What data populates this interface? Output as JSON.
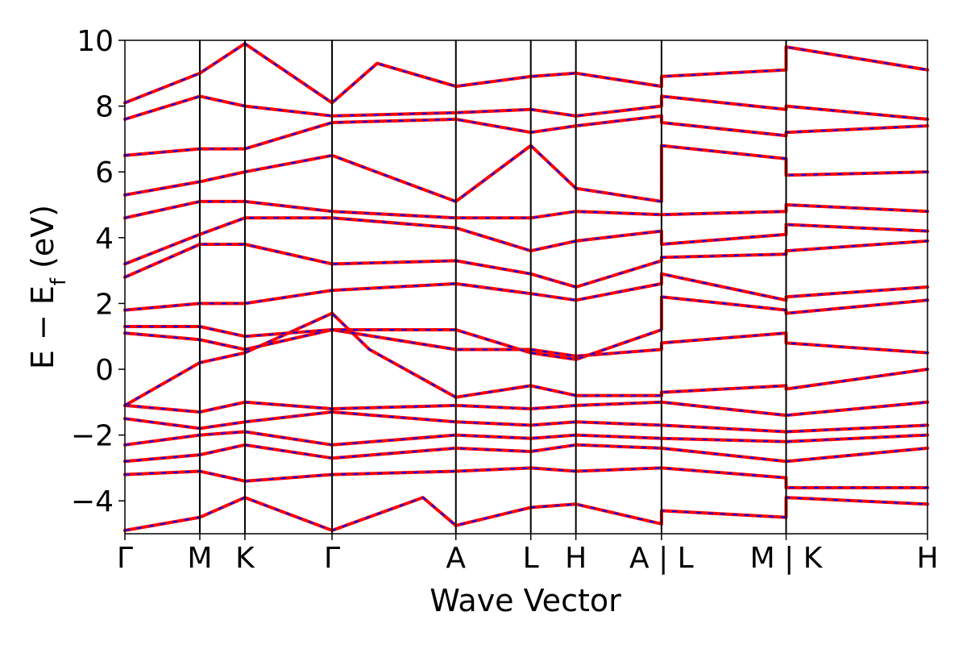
{
  "chart_data": {
    "type": "line",
    "xlabel": "Wave Vector",
    "ylabel": "E − E",
    "ylabel_subscript": "f",
    "ylabel_unit": "(eV)",
    "ylim": [
      -5,
      10
    ],
    "yticks": [
      -4,
      -2,
      0,
      2,
      4,
      6,
      8,
      10
    ],
    "ytick_labels": [
      "−4",
      "−2",
      "0",
      "2",
      "4",
      "6",
      "8",
      "10"
    ],
    "xlim": [
      0,
      10.5
    ],
    "kpoints": [
      {
        "label": "Γ",
        "x": 0.0
      },
      {
        "label": "M",
        "x": 0.98
      },
      {
        "label": "K",
        "x": 1.57
      },
      {
        "label": "Γ",
        "x": 2.71
      },
      {
        "label": "A",
        "x": 4.33
      },
      {
        "label": "L",
        "x": 5.31
      },
      {
        "label": "H",
        "x": 5.9
      },
      {
        "label": "A | L",
        "x": 7.02
      },
      {
        "label": "M | K",
        "x": 8.65
      },
      {
        "label": "H",
        "x": 10.5
      }
    ],
    "colors": {
      "band_primary": "#ff0000",
      "band_secondary": "#0000ff",
      "divider": "#000000"
    },
    "series": [
      {
        "values": [
          [
            0.0,
            -4.9
          ],
          [
            0.98,
            -4.5
          ],
          [
            1.57,
            -3.9
          ],
          [
            2.71,
            -4.9
          ],
          [
            3.9,
            -3.9
          ],
          [
            4.33,
            -4.75
          ],
          [
            5.31,
            -4.2
          ],
          [
            5.9,
            -4.1
          ],
          [
            7.02,
            -4.7
          ],
          [
            7.02,
            -4.3
          ],
          [
            8.65,
            -4.5
          ],
          [
            8.65,
            -3.9
          ],
          [
            10.5,
            -4.1
          ]
        ]
      },
      {
        "values": [
          [
            0.0,
            -3.2
          ],
          [
            0.98,
            -3.1
          ],
          [
            1.57,
            -3.4
          ],
          [
            2.71,
            -3.2
          ],
          [
            4.33,
            -3.1
          ],
          [
            5.31,
            -3.0
          ],
          [
            5.9,
            -3.1
          ],
          [
            7.02,
            -3.0
          ],
          [
            8.65,
            -3.3
          ],
          [
            8.65,
            -3.6
          ],
          [
            10.5,
            -3.6
          ]
        ]
      },
      {
        "values": [
          [
            0.0,
            -2.8
          ],
          [
            0.98,
            -2.6
          ],
          [
            1.57,
            -2.3
          ],
          [
            2.71,
            -2.7
          ],
          [
            4.33,
            -2.4
          ],
          [
            5.31,
            -2.5
          ],
          [
            5.9,
            -2.3
          ],
          [
            7.02,
            -2.4
          ],
          [
            8.65,
            -2.8
          ],
          [
            10.5,
            -2.4
          ]
        ]
      },
      {
        "values": [
          [
            0.0,
            -2.3
          ],
          [
            0.98,
            -2.0
          ],
          [
            1.57,
            -1.9
          ],
          [
            2.71,
            -2.3
          ],
          [
            4.33,
            -2.0
          ],
          [
            5.31,
            -2.1
          ],
          [
            5.9,
            -2.0
          ],
          [
            7.02,
            -2.1
          ],
          [
            8.65,
            -2.2
          ],
          [
            10.5,
            -2.0
          ]
        ]
      },
      {
        "values": [
          [
            0.0,
            -1.5
          ],
          [
            0.98,
            -1.8
          ],
          [
            1.57,
            -1.6
          ],
          [
            2.71,
            -1.3
          ],
          [
            4.33,
            -1.6
          ],
          [
            5.31,
            -1.7
          ],
          [
            5.9,
            -1.6
          ],
          [
            7.02,
            -1.7
          ],
          [
            8.65,
            -1.9
          ],
          [
            10.5,
            -1.7
          ]
        ]
      },
      {
        "values": [
          [
            0.0,
            -1.1
          ],
          [
            0.98,
            -1.3
          ],
          [
            1.57,
            -1.0
          ],
          [
            2.71,
            -1.2
          ],
          [
            4.33,
            -1.1
          ],
          [
            5.31,
            -1.2
          ],
          [
            5.9,
            -1.1
          ],
          [
            7.02,
            -1.0
          ],
          [
            8.65,
            -1.4
          ],
          [
            10.5,
            -1.0
          ]
        ]
      },
      {
        "values": [
          [
            0.0,
            -1.1
          ],
          [
            0.98,
            0.2
          ],
          [
            1.57,
            0.5
          ],
          [
            2.71,
            1.7
          ],
          [
            3.2,
            0.6
          ],
          [
            4.33,
            -0.85
          ],
          [
            5.31,
            -0.5
          ],
          [
            5.9,
            -0.8
          ],
          [
            7.02,
            -0.8
          ],
          [
            7.02,
            -0.7
          ],
          [
            8.65,
            -0.5
          ],
          [
            8.65,
            -0.6
          ],
          [
            10.5,
            0.0
          ]
        ]
      },
      {
        "values": [
          [
            0.0,
            1.1
          ],
          [
            0.98,
            0.9
          ],
          [
            1.57,
            0.6
          ],
          [
            2.71,
            1.2
          ],
          [
            4.33,
            0.6
          ],
          [
            5.31,
            0.6
          ],
          [
            5.9,
            0.4
          ],
          [
            7.02,
            0.6
          ],
          [
            7.02,
            0.8
          ],
          [
            8.65,
            1.1
          ],
          [
            8.65,
            0.8
          ],
          [
            10.5,
            0.5
          ]
        ]
      },
      {
        "values": [
          [
            0.0,
            1.3
          ],
          [
            0.98,
            1.3
          ],
          [
            1.57,
            1.0
          ],
          [
            2.71,
            1.2
          ],
          [
            4.33,
            1.2
          ],
          [
            5.31,
            0.5
          ],
          [
            5.9,
            0.3
          ],
          [
            7.02,
            1.2
          ],
          [
            7.02,
            2.2
          ],
          [
            8.65,
            1.8
          ],
          [
            8.65,
            1.7
          ],
          [
            10.5,
            2.1
          ]
        ]
      },
      {
        "values": [
          [
            0.0,
            1.8
          ],
          [
            0.98,
            2.0
          ],
          [
            1.57,
            2.0
          ],
          [
            2.71,
            2.4
          ],
          [
            4.33,
            2.6
          ],
          [
            5.31,
            2.3
          ],
          [
            5.9,
            2.1
          ],
          [
            7.02,
            2.6
          ],
          [
            7.02,
            2.9
          ],
          [
            8.65,
            2.1
          ],
          [
            8.65,
            2.2
          ],
          [
            10.5,
            2.5
          ]
        ]
      },
      {
        "values": [
          [
            0.0,
            2.8
          ],
          [
            0.98,
            3.8
          ],
          [
            1.57,
            3.8
          ],
          [
            2.71,
            3.2
          ],
          [
            4.33,
            3.3
          ],
          [
            5.31,
            2.9
          ],
          [
            5.9,
            2.5
          ],
          [
            7.02,
            3.3
          ],
          [
            7.02,
            3.4
          ],
          [
            8.65,
            3.5
          ],
          [
            8.65,
            3.6
          ],
          [
            10.5,
            3.9
          ]
        ]
      },
      {
        "values": [
          [
            0.0,
            3.2
          ],
          [
            0.98,
            4.1
          ],
          [
            1.57,
            4.6
          ],
          [
            2.71,
            4.6
          ],
          [
            4.33,
            4.3
          ],
          [
            5.31,
            3.6
          ],
          [
            5.9,
            3.9
          ],
          [
            7.02,
            4.2
          ],
          [
            7.02,
            3.8
          ],
          [
            8.65,
            4.1
          ],
          [
            8.65,
            4.4
          ],
          [
            10.5,
            4.2
          ]
        ]
      },
      {
        "values": [
          [
            0.0,
            4.6
          ],
          [
            0.98,
            5.1
          ],
          [
            1.57,
            5.1
          ],
          [
            2.71,
            4.8
          ],
          [
            4.33,
            4.6
          ],
          [
            5.31,
            4.6
          ],
          [
            5.9,
            4.8
          ],
          [
            7.02,
            4.7
          ],
          [
            7.02,
            4.7
          ],
          [
            8.65,
            4.8
          ],
          [
            8.65,
            5.0
          ],
          [
            10.5,
            4.8
          ]
        ]
      },
      {
        "values": [
          [
            0.0,
            5.3
          ],
          [
            0.98,
            5.7
          ],
          [
            1.57,
            6.0
          ],
          [
            2.71,
            6.5
          ],
          [
            4.33,
            5.1
          ],
          [
            5.31,
            6.8
          ],
          [
            5.9,
            5.5
          ],
          [
            7.02,
            5.1
          ],
          [
            7.02,
            6.8
          ],
          [
            8.65,
            6.4
          ],
          [
            8.65,
            5.9
          ],
          [
            10.5,
            6.0
          ]
        ]
      },
      {
        "values": [
          [
            0.0,
            6.5
          ],
          [
            0.98,
            6.7
          ],
          [
            1.57,
            6.7
          ],
          [
            2.71,
            7.5
          ],
          [
            4.33,
            7.6
          ],
          [
            5.31,
            7.2
          ],
          [
            5.9,
            7.4
          ],
          [
            7.02,
            7.7
          ],
          [
            7.02,
            7.5
          ],
          [
            8.65,
            7.1
          ],
          [
            8.65,
            7.2
          ],
          [
            10.5,
            7.4
          ]
        ]
      },
      {
        "values": [
          [
            0.0,
            7.6
          ],
          [
            0.98,
            8.3
          ],
          [
            1.57,
            8.0
          ],
          [
            2.71,
            7.7
          ],
          [
            4.33,
            7.8
          ],
          [
            5.31,
            7.9
          ],
          [
            5.9,
            7.7
          ],
          [
            7.02,
            8.0
          ],
          [
            7.02,
            8.3
          ],
          [
            8.65,
            7.9
          ],
          [
            8.65,
            8.0
          ],
          [
            10.5,
            7.6
          ]
        ]
      },
      {
        "values": [
          [
            0.0,
            8.1
          ],
          [
            0.98,
            9.0
          ],
          [
            1.57,
            9.9
          ],
          [
            2.71,
            8.1
          ],
          [
            3.3,
            9.3
          ],
          [
            4.33,
            8.6
          ],
          [
            5.31,
            8.9
          ],
          [
            5.9,
            9.0
          ],
          [
            7.02,
            8.6
          ],
          [
            7.02,
            8.9
          ],
          [
            8.65,
            9.1
          ],
          [
            8.65,
            9.8
          ],
          [
            10.5,
            9.1
          ]
        ]
      }
    ]
  }
}
